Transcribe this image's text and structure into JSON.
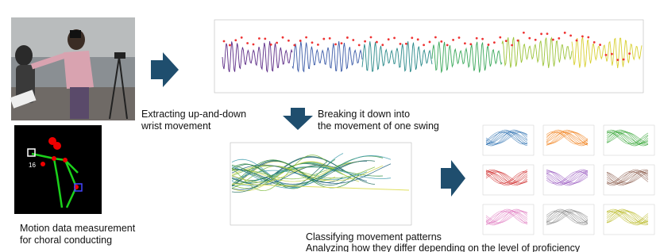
{
  "captions": {
    "extract": {
      "lines": [
        "Extracting up-and-down",
        "wrist movement"
      ]
    },
    "breakdown": {
      "lines": [
        "Breaking it down into",
        "the movement of one swing"
      ]
    },
    "measure": {
      "lines": [
        "Motion data measurement",
        "for choral conducting"
      ]
    },
    "classify": {
      "lines": [
        "Classifying movement patterns",
        "Analyzing how they differ depending on the level of proficiency"
      ]
    }
  },
  "skeleton": {
    "joint_label": "16"
  }
}
